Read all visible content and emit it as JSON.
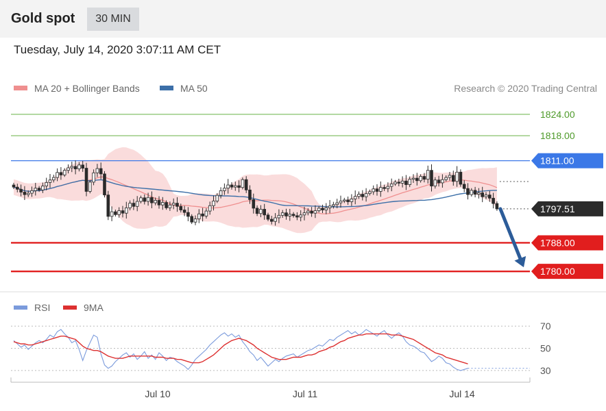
{
  "header": {
    "title": "Gold spot",
    "timeframe": "30 MIN"
  },
  "timestamp": "Tuesday, July 14, 2020 3:07:11 AM CET",
  "legend": {
    "ma20": "MA 20 + Bollinger Bands",
    "ma50": "MA 50",
    "credit": "Research © 2020 Trading Central"
  },
  "rsi_legend": {
    "rsi": "RSI",
    "ma9": "9MA"
  },
  "colors": {
    "candle": "#2a2a2a",
    "bollinger": "#f9d6d6",
    "ma20": "#ef8f8f",
    "ma50": "#3c6fa8",
    "support": "#e11e1e",
    "resistance": "#86c06a",
    "pivot": "#3b78e7",
    "current": "#2b2b2b",
    "arrow": "#2c5c99",
    "rsi": "#7b9bdc",
    "rsi_ma": "#dd3030"
  },
  "chart_data": [
    {
      "type": "candlestick",
      "title": "Gold spot",
      "timeframe": "30 MIN",
      "x_tick_labels": [
        "Jul 10",
        "Jul 11",
        "Jul 14"
      ],
      "ylim": [
        1776,
        1828
      ],
      "series_close": [
        1803.6,
        1803.0,
        1802.2,
        1801.5,
        1801.9,
        1802.6,
        1803.3,
        1802.8,
        1803.9,
        1804.9,
        1805.6,
        1806.3,
        1807.7,
        1807.0,
        1808.3,
        1809.0,
        1809.4,
        1808.7,
        1809.8,
        1808.9,
        1802.4,
        1805.0,
        1807.6,
        1808.8,
        1807.3,
        1801.4,
        1795.4,
        1796.7,
        1795.9,
        1797.0,
        1796.3,
        1797.8,
        1799.1,
        1798.2,
        1799.6,
        1800.6,
        1799.6,
        1800.7,
        1799.2,
        1799.9,
        1798.6,
        1799.3,
        1797.8,
        1798.6,
        1799.1,
        1798.2,
        1797.2,
        1796.5,
        1795.4,
        1793.8,
        1794.7,
        1796.1,
        1795.5,
        1796.9,
        1798.4,
        1799.7,
        1801.3,
        1802.6,
        1803.3,
        1804.2,
        1803.6,
        1804.0,
        1803.5,
        1805.7,
        1802.8,
        1800.1,
        1797.7,
        1796.2,
        1797.4,
        1795.8,
        1794.6,
        1794.0,
        1795.0,
        1795.7,
        1796.4,
        1795.5,
        1796.0,
        1795.6,
        1795.2,
        1795.8,
        1796.4,
        1796.9,
        1796.3,
        1797.0,
        1797.7,
        1797.2,
        1797.8,
        1798.3,
        1798.7,
        1799.2,
        1799.7,
        1800.0,
        1799.5,
        1800.3,
        1801.0,
        1801.6,
        1800.9,
        1801.8,
        1802.3,
        1803.1,
        1802.4,
        1803.5,
        1803.2,
        1803.8,
        1804.5,
        1805.0,
        1804.7,
        1805.3,
        1804.3,
        1805.8,
        1806.1,
        1805.4,
        1806.6,
        1805.8,
        1808.3,
        1803.9,
        1805.6,
        1804.8,
        1805.7,
        1806.3,
        1806.9,
        1805.2,
        1807.8,
        1804.4,
        1803.2,
        1801.5,
        1802.7,
        1801.6,
        1802.0,
        1800.9,
        1801.4,
        1800.5,
        1799.0,
        1797.5
      ],
      "support": [
        1788.0,
        1780.0
      ],
      "resistance": [
        1824.0,
        1818.0
      ],
      "pivot": 1811.0,
      "current_price": 1797.51,
      "price_labels": [
        "1824.00",
        "1818.00",
        "1811.00",
        "1797.51",
        "1788.00",
        "1780.00"
      ],
      "forecast": {
        "from": 1797.51,
        "to": 1780.0
      },
      "legend": [
        "MA 20 + Bollinger Bands",
        "MA 50"
      ]
    },
    {
      "type": "line",
      "title": "RSI",
      "ylim": [
        25,
        75
      ],
      "y_tick_labels": [
        "70",
        "50",
        "30"
      ],
      "series": [
        {
          "name": "RSI",
          "values": [
            57,
            54,
            51,
            53,
            49,
            52,
            55,
            57,
            55,
            58,
            62,
            60,
            65,
            67,
            63,
            60,
            55,
            57,
            49,
            39,
            48,
            55,
            62,
            60,
            45,
            35,
            32,
            34,
            38,
            41,
            44,
            46,
            42,
            45,
            40,
            43,
            47,
            41,
            44,
            40,
            46,
            43,
            39,
            42,
            41,
            38,
            36,
            34,
            31,
            35,
            40,
            43,
            46,
            49,
            53,
            56,
            59,
            62,
            64,
            61,
            63,
            60,
            62,
            56,
            52,
            47,
            44,
            39,
            42,
            38,
            34,
            37,
            40,
            38,
            41,
            43,
            44,
            45,
            42,
            44,
            46,
            48,
            49,
            51,
            53,
            52,
            55,
            58,
            57,
            60,
            62,
            64,
            66,
            63,
            65,
            62,
            64,
            67,
            65,
            63,
            61,
            64,
            66,
            62,
            59,
            62,
            64,
            61,
            56,
            53,
            52,
            50,
            47,
            46,
            42,
            38,
            40,
            43,
            41,
            37,
            36,
            33,
            31,
            30,
            31,
            32
          ]
        },
        {
          "name": "9MA",
          "values": [
            56,
            55,
            54,
            54,
            53,
            53,
            54,
            55,
            56,
            57,
            58,
            59,
            60,
            61,
            61,
            60,
            59,
            58,
            55,
            52,
            50,
            49,
            48,
            48,
            47,
            45,
            43,
            42,
            41,
            41,
            41,
            42,
            43,
            43,
            43,
            43,
            43,
            43,
            43,
            42,
            42,
            42,
            41,
            41,
            41,
            40,
            40,
            39,
            38,
            37,
            37,
            37,
            38,
            40,
            42,
            44,
            47,
            50,
            53,
            55,
            57,
            58,
            59,
            58,
            57,
            55,
            53,
            50,
            48,
            46,
            44,
            42,
            41,
            40,
            40,
            40,
            41,
            42,
            42,
            42,
            43,
            44,
            44,
            45,
            47,
            48,
            49,
            51,
            52,
            54,
            56,
            57,
            59,
            60,
            61,
            62,
            62,
            63,
            63,
            63,
            63,
            63,
            63,
            63,
            62,
            62,
            62,
            61,
            60,
            59,
            58,
            56,
            54,
            52,
            50,
            48,
            46,
            45,
            44,
            42,
            41,
            40,
            39,
            38,
            37,
            36
          ]
        }
      ]
    }
  ]
}
